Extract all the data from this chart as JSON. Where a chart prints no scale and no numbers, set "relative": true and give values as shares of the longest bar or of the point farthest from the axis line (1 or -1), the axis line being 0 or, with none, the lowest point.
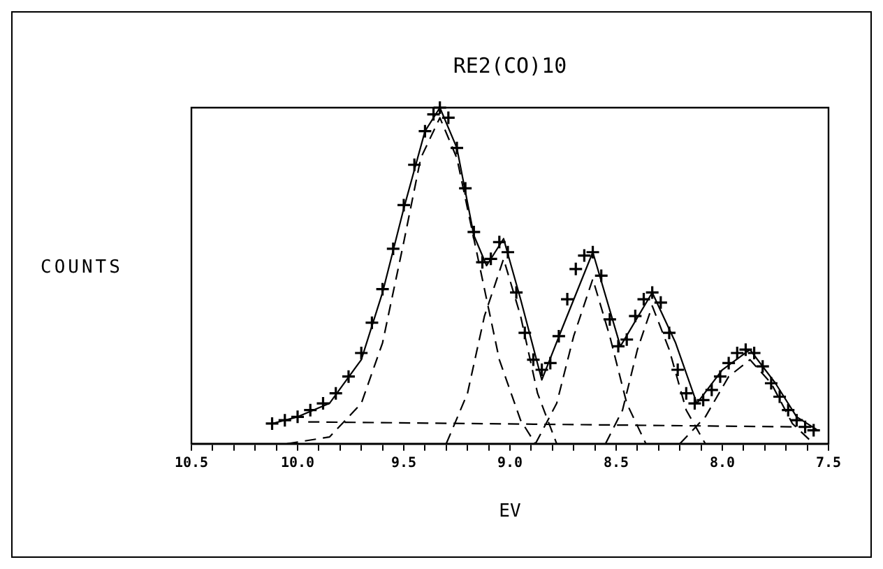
{
  "chart_data": {
    "type": "line",
    "title": "RE2(CO)10",
    "xlabel": "EV",
    "ylabel": "COUNTS",
    "relative": true,
    "xlim": [
      10.5,
      7.5
    ],
    "xticks": [
      10.5,
      {
        "value": 10.4,
        "label": null
      },
      {
        "value": 10.3,
        "label": null
      },
      {
        "value": 10.2,
        "label": null
      },
      {
        "value": 10.1,
        "label": null
      },
      {
        "value": 10.0,
        "label": "10.0"
      },
      {
        "value": 9.9,
        "label": null
      },
      {
        "value": 9.8,
        "label": null
      },
      {
        "value": 9.7,
        "label": null
      },
      {
        "value": 9.6,
        "label": null
      },
      9.5,
      {
        "value": 9.4,
        "label": null
      },
      {
        "value": 9.3,
        "label": null
      },
      {
        "value": 9.2,
        "label": null
      },
      {
        "value": 9.1,
        "label": null
      },
      {
        "value": 9.0,
        "label": "9.0"
      },
      {
        "value": 8.9,
        "label": null
      },
      {
        "value": 8.8,
        "label": null
      },
      {
        "value": 8.7,
        "label": null
      },
      {
        "value": 8.6,
        "label": null
      },
      8.5,
      {
        "value": 8.4,
        "label": null
      },
      {
        "value": 8.3,
        "label": null
      },
      {
        "value": 8.2,
        "label": null
      },
      {
        "value": 8.1,
        "label": null
      },
      {
        "value": 8.0,
        "label": "8.0"
      },
      {
        "value": 7.9,
        "label": null
      },
      {
        "value": 7.8,
        "label": null
      },
      {
        "value": 7.7,
        "label": null
      },
      {
        "value": 7.6,
        "label": null
      },
      7.5
    ],
    "grid": false,
    "legend": false,
    "series": [
      {
        "type": "scatter",
        "marker": "cross",
        "color": "#000000",
        "x": [
          10.12,
          10.06,
          10.0,
          9.94,
          9.88,
          9.82,
          9.76,
          9.7,
          9.65,
          9.6,
          9.55,
          9.5,
          9.45,
          9.4,
          9.36,
          9.33,
          9.29,
          9.25,
          9.21,
          9.17,
          9.13,
          9.09,
          9.05,
          9.01,
          8.97,
          8.93,
          8.89,
          8.85,
          8.81,
          8.77,
          8.73,
          8.69,
          8.65,
          8.61,
          8.57,
          8.53,
          8.49,
          8.45,
          8.41,
          8.37,
          8.33,
          8.29,
          8.25,
          8.21,
          8.17,
          8.13,
          8.09,
          8.05,
          8.01,
          7.97,
          7.93,
          7.89,
          7.85,
          7.81,
          7.77,
          7.73,
          7.69,
          7.65,
          7.61,
          7.57
        ],
        "values": [
          0.06,
          0.07,
          0.08,
          0.1,
          0.12,
          0.15,
          0.2,
          0.27,
          0.36,
          0.46,
          0.58,
          0.71,
          0.83,
          0.93,
          0.98,
          1.0,
          0.97,
          0.88,
          0.76,
          0.63,
          0.54,
          0.55,
          0.6,
          0.57,
          0.45,
          0.33,
          0.25,
          0.22,
          0.24,
          0.32,
          0.43,
          0.52,
          0.56,
          0.57,
          0.5,
          0.37,
          0.29,
          0.31,
          0.38,
          0.43,
          0.45,
          0.42,
          0.33,
          0.22,
          0.15,
          0.12,
          0.13,
          0.16,
          0.2,
          0.24,
          0.27,
          0.28,
          0.27,
          0.23,
          0.18,
          0.14,
          0.1,
          0.07,
          0.05,
          0.04
        ]
      },
      {
        "type": "line",
        "line_style": "solid",
        "color": "#000000",
        "x": [
          10.12,
          10.0,
          9.85,
          9.7,
          9.6,
          9.5,
          9.4,
          9.33,
          9.25,
          9.17,
          9.11,
          9.03,
          8.95,
          8.85,
          8.75,
          8.61,
          8.48,
          8.33,
          8.22,
          8.12,
          8.0,
          7.87,
          7.75,
          7.65,
          7.55
        ],
        "values": [
          0.06,
          0.08,
          0.12,
          0.25,
          0.45,
          0.7,
          0.93,
          1.0,
          0.88,
          0.62,
          0.53,
          0.61,
          0.43,
          0.19,
          0.35,
          0.57,
          0.29,
          0.45,
          0.3,
          0.12,
          0.22,
          0.28,
          0.18,
          0.08,
          0.04
        ]
      },
      {
        "type": "line",
        "line_style": "dashed",
        "color": "#000000",
        "x": [
          10.05,
          9.85,
          9.7,
          9.6,
          9.5,
          9.42,
          9.33,
          9.25,
          9.15,
          9.05,
          8.95,
          8.88
        ],
        "values": [
          0.0,
          0.02,
          0.12,
          0.3,
          0.6,
          0.85,
          0.97,
          0.85,
          0.55,
          0.25,
          0.07,
          0.0
        ]
      },
      {
        "type": "line",
        "line_style": "dashed",
        "color": "#000000",
        "x": [
          9.3,
          9.2,
          9.12,
          9.03,
          8.95,
          8.87,
          8.78
        ],
        "values": [
          0.0,
          0.15,
          0.38,
          0.55,
          0.38,
          0.15,
          0.0
        ]
      },
      {
        "type": "line",
        "line_style": "dashed",
        "color": "#000000",
        "x": [
          8.88,
          8.78,
          8.7,
          8.61,
          8.53,
          8.45,
          8.36
        ],
        "values": [
          0.0,
          0.12,
          0.32,
          0.49,
          0.32,
          0.12,
          0.0
        ]
      },
      {
        "type": "line",
        "line_style": "dashed",
        "color": "#000000",
        "x": [
          8.55,
          8.47,
          8.4,
          8.33,
          8.25,
          8.17,
          8.08
        ],
        "values": [
          0.0,
          0.1,
          0.28,
          0.41,
          0.28,
          0.1,
          0.0
        ]
      },
      {
        "type": "line",
        "line_style": "dashed",
        "color": "#000000",
        "x": [
          8.2,
          8.08,
          7.97,
          7.87,
          7.77,
          7.67,
          7.57
        ],
        "values": [
          0.0,
          0.08,
          0.2,
          0.25,
          0.18,
          0.06,
          0.0
        ]
      },
      {
        "type": "line",
        "line_style": "dashed",
        "color": "#000000",
        "x": [
          9.95,
          7.62
        ],
        "values": [
          0.065,
          0.05
        ]
      }
    ]
  }
}
